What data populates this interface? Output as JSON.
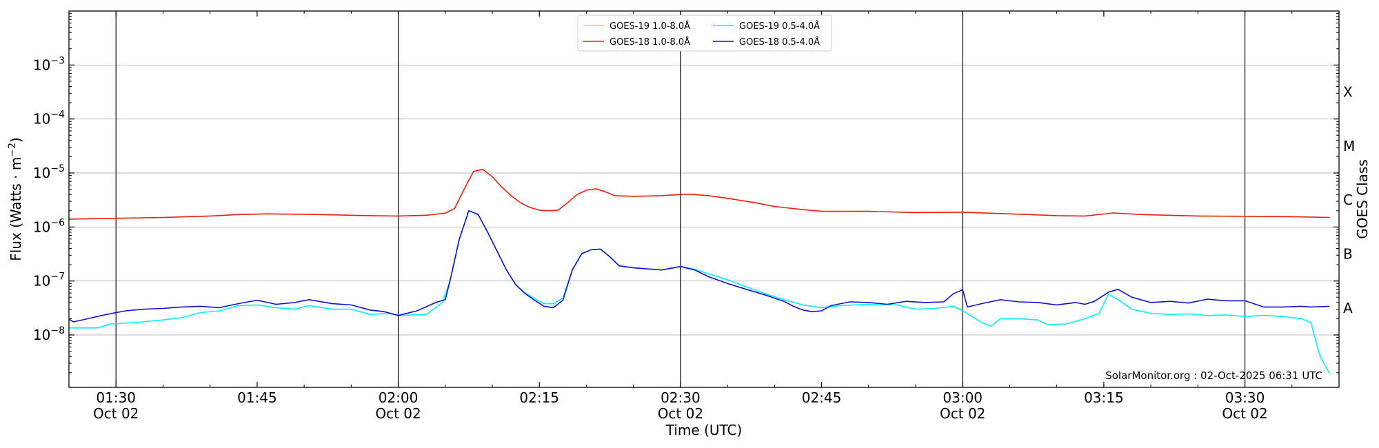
{
  "chart_data": {
    "type": "line",
    "xlabel": "Time (UTC)",
    "ylabel": "Flux (Watts · m",
    "ylabel_sup": "−2",
    "ylabel_close": ")",
    "right_axis_label": "GOES Class",
    "y_scale": "log",
    "xlim": [
      85,
      220
    ],
    "ylim_exp": [
      -8.97,
      -2.0
    ],
    "grid": true,
    "legend_position": "top-center",
    "x_ticks": [
      {
        "minute": 90,
        "time": "01:30",
        "date": "Oct 02",
        "major": true
      },
      {
        "minute": 105,
        "time": "01:45",
        "date": "",
        "major": false
      },
      {
        "minute": 120,
        "time": "02:00",
        "date": "Oct 02",
        "major": true
      },
      {
        "minute": 135,
        "time": "02:15",
        "date": "",
        "major": false
      },
      {
        "minute": 150,
        "time": "02:30",
        "date": "Oct 02",
        "major": true
      },
      {
        "minute": 165,
        "time": "02:45",
        "date": "",
        "major": false
      },
      {
        "minute": 180,
        "time": "03:00",
        "date": "Oct 02",
        "major": true
      },
      {
        "minute": 195,
        "time": "03:15",
        "date": "",
        "major": false
      },
      {
        "minute": 210,
        "time": "03:30",
        "date": "Oct 02",
        "major": true
      }
    ],
    "y_ticks": [
      {
        "exp": -3,
        "base": "10",
        "sup": "−3"
      },
      {
        "exp": -4,
        "base": "10",
        "sup": "−4"
      },
      {
        "exp": -5,
        "base": "10",
        "sup": "−5"
      },
      {
        "exp": -6,
        "base": "10",
        "sup": "−6"
      },
      {
        "exp": -7,
        "base": "10",
        "sup": "−7"
      },
      {
        "exp": -8,
        "base": "10",
        "sup": "−8"
      }
    ],
    "goes_classes": [
      {
        "label": "X",
        "exp": -3.5
      },
      {
        "label": "M",
        "exp": -4.5
      },
      {
        "label": "C",
        "exp": -5.5
      },
      {
        "label": "B",
        "exp": -6.5
      },
      {
        "label": "A",
        "exp": -7.5
      }
    ],
    "annotation": "SolarMonitor.org : 02-Oct-2025 06:31 UTC",
    "series": [
      {
        "name": "GOES-19 1.0-8.0Å",
        "color": "#ffd700",
        "points": []
      },
      {
        "name": "GOES-18 1.0-8.0Å",
        "color": "#e8200a",
        "points": [
          [
            85,
            1.4e-06
          ],
          [
            90,
            1.45e-06
          ],
          [
            95,
            1.5e-06
          ],
          [
            100,
            1.6e-06
          ],
          [
            103,
            1.7e-06
          ],
          [
            106,
            1.75e-06
          ],
          [
            110,
            1.72e-06
          ],
          [
            113,
            1.68e-06
          ],
          [
            117,
            1.62e-06
          ],
          [
            120,
            1.6e-06
          ],
          [
            123,
            1.65e-06
          ],
          [
            125,
            1.8e-06
          ],
          [
            126,
            2.2e-06
          ],
          [
            127,
            5e-06
          ],
          [
            128,
            1.07e-05
          ],
          [
            129,
            1.17e-05
          ],
          [
            130,
            8.5e-06
          ],
          [
            131,
            5.5e-06
          ],
          [
            132,
            3.8e-06
          ],
          [
            133,
            2.8e-06
          ],
          [
            134,
            2.3e-06
          ],
          [
            135,
            2.05e-06
          ],
          [
            136,
            2e-06
          ],
          [
            137,
            2.05e-06
          ],
          [
            138,
            2.8e-06
          ],
          [
            139,
            4e-06
          ],
          [
            140,
            4.8e-06
          ],
          [
            141,
            5.1e-06
          ],
          [
            142,
            4.5e-06
          ],
          [
            143,
            3.8e-06
          ],
          [
            145,
            3.7e-06
          ],
          [
            148,
            3.8e-06
          ],
          [
            150,
            4e-06
          ],
          [
            151,
            4.05e-06
          ],
          [
            153,
            3.8e-06
          ],
          [
            155,
            3.4e-06
          ],
          [
            158,
            2.8e-06
          ],
          [
            160,
            2.4e-06
          ],
          [
            163,
            2.1e-06
          ],
          [
            165,
            1.95e-06
          ],
          [
            170,
            1.95e-06
          ],
          [
            175,
            1.85e-06
          ],
          [
            180,
            1.88e-06
          ],
          [
            185,
            1.75e-06
          ],
          [
            190,
            1.62e-06
          ],
          [
            193,
            1.6e-06
          ],
          [
            196,
            1.82e-06
          ],
          [
            199,
            1.7e-06
          ],
          [
            205,
            1.6e-06
          ],
          [
            210,
            1.58e-06
          ],
          [
            215,
            1.55e-06
          ],
          [
            219,
            1.5e-06
          ]
        ]
      },
      {
        "name": "GOES-19 0.5-4.0Å",
        "color": "#00f2ff",
        "points": [
          [
            85,
            1.35e-08
          ],
          [
            88,
            1.35e-08
          ],
          [
            89.5,
            1.6e-08
          ],
          [
            92,
            1.7e-08
          ],
          [
            95,
            1.9e-08
          ],
          [
            97,
            2.1e-08
          ],
          [
            99,
            2.6e-08
          ],
          [
            101,
            2.8e-08
          ],
          [
            103,
            3.5e-08
          ],
          [
            105,
            3.6e-08
          ],
          [
            107,
            3.2e-08
          ],
          [
            109,
            3e-08
          ],
          [
            110.5,
            3.5e-08
          ],
          [
            113,
            3e-08
          ],
          [
            115,
            3e-08
          ],
          [
            117,
            2.4e-08
          ],
          [
            119,
            2.5e-08
          ],
          [
            120,
            2.3e-08
          ],
          [
            123,
            2.4e-08
          ],
          [
            124.7,
            4e-08
          ],
          [
            125.5,
            1e-07
          ],
          [
            126.5,
            6e-07
          ],
          [
            127.5,
            2e-06
          ],
          [
            128.5,
            1.7e-06
          ],
          [
            129.5,
            8e-07
          ],
          [
            130.5,
            3.6e-07
          ],
          [
            131.5,
            1.6e-07
          ],
          [
            132.5,
            8.5e-08
          ],
          [
            133.5,
            6e-08
          ],
          [
            134.5,
            4.7e-08
          ],
          [
            135.5,
            3.8e-08
          ],
          [
            136.5,
            3.8e-08
          ],
          [
            137.5,
            4.8e-08
          ],
          [
            138.5,
            1.6e-07
          ],
          [
            139.5,
            3.2e-07
          ],
          [
            140.5,
            3.8e-07
          ],
          [
            141.5,
            3.9e-07
          ],
          [
            142.5,
            2.8e-07
          ],
          [
            143.5,
            1.9e-07
          ],
          [
            145,
            1.75e-07
          ],
          [
            148,
            1.6e-07
          ],
          [
            150,
            1.85e-07
          ],
          [
            151.5,
            1.65e-07
          ],
          [
            153,
            1.35e-07
          ],
          [
            155,
            1.05e-07
          ],
          [
            157,
            7.8e-08
          ],
          [
            159,
            5.8e-08
          ],
          [
            161,
            4.5e-08
          ],
          [
            163,
            3.6e-08
          ],
          [
            165,
            3.2e-08
          ],
          [
            167,
            3.5e-08
          ],
          [
            170,
            3.7e-08
          ],
          [
            173,
            3.6e-08
          ],
          [
            175,
            3e-08
          ],
          [
            177,
            3.1e-08
          ],
          [
            179,
            3.4e-08
          ],
          [
            180,
            2.8e-08
          ],
          [
            181,
            2.2e-08
          ],
          [
            182,
            1.7e-08
          ],
          [
            183,
            1.45e-08
          ],
          [
            184,
            2e-08
          ],
          [
            186,
            2e-08
          ],
          [
            188,
            1.9e-08
          ],
          [
            189,
            1.55e-08
          ],
          [
            191,
            1.6e-08
          ],
          [
            193,
            2e-08
          ],
          [
            194.5,
            2.5e-08
          ],
          [
            195.5,
            5.7e-08
          ],
          [
            196.5,
            4.5e-08
          ],
          [
            198,
            3e-08
          ],
          [
            200,
            2.5e-08
          ],
          [
            202,
            2.4e-08
          ],
          [
            204,
            2.45e-08
          ],
          [
            206,
            2.3e-08
          ],
          [
            208,
            2.35e-08
          ],
          [
            210,
            2.2e-08
          ],
          [
            212,
            2.3e-08
          ],
          [
            214,
            2.2e-08
          ],
          [
            216,
            2e-08
          ],
          [
            217,
            1.7e-08
          ],
          [
            218,
            4e-09
          ],
          [
            219,
            1.9e-09
          ]
        ]
      },
      {
        "name": "GOES-18 0.5-4.0Å",
        "color": "#1010d0",
        "points": [
          [
            85,
            1.95e-08
          ],
          [
            85.5,
            1.75e-08
          ],
          [
            87,
            2e-08
          ],
          [
            89,
            2.4e-08
          ],
          [
            91,
            2.8e-08
          ],
          [
            93,
            3e-08
          ],
          [
            95,
            3.1e-08
          ],
          [
            97,
            3.3e-08
          ],
          [
            99,
            3.4e-08
          ],
          [
            101,
            3.2e-08
          ],
          [
            102,
            3.5e-08
          ],
          [
            103,
            3.8e-08
          ],
          [
            105,
            4.4e-08
          ],
          [
            107,
            3.7e-08
          ],
          [
            109,
            4e-08
          ],
          [
            110.5,
            4.5e-08
          ],
          [
            113,
            3.8e-08
          ],
          [
            115,
            3.6e-08
          ],
          [
            117,
            2.9e-08
          ],
          [
            118.5,
            2.7e-08
          ],
          [
            120,
            2.3e-08
          ],
          [
            122,
            2.8e-08
          ],
          [
            124,
            4e-08
          ],
          [
            125,
            4.5e-08
          ],
          [
            125.5,
            1e-07
          ],
          [
            126.5,
            6e-07
          ],
          [
            127.5,
            2e-06
          ],
          [
            128.5,
            1.7e-06
          ],
          [
            129.5,
            8e-07
          ],
          [
            130.5,
            3.6e-07
          ],
          [
            131.5,
            1.6e-07
          ],
          [
            132.5,
            8.5e-08
          ],
          [
            133.5,
            5.8e-08
          ],
          [
            134.5,
            4.4e-08
          ],
          [
            135.5,
            3.4e-08
          ],
          [
            136.5,
            3.2e-08
          ],
          [
            137.5,
            4.4e-08
          ],
          [
            138.5,
            1.6e-07
          ],
          [
            139.5,
            3.2e-07
          ],
          [
            140.5,
            3.8e-07
          ],
          [
            141.5,
            3.9e-07
          ],
          [
            142.5,
            2.8e-07
          ],
          [
            143.5,
            1.9e-07
          ],
          [
            145,
            1.75e-07
          ],
          [
            148,
            1.6e-07
          ],
          [
            150,
            1.85e-07
          ],
          [
            151.5,
            1.6e-07
          ],
          [
            153,
            1.2e-07
          ],
          [
            155,
            9e-08
          ],
          [
            157,
            7e-08
          ],
          [
            159,
            5.5e-08
          ],
          [
            161,
            4.2e-08
          ],
          [
            162,
            3.4e-08
          ],
          [
            163,
            2.9e-08
          ],
          [
            164,
            2.7e-08
          ],
          [
            165,
            2.8e-08
          ],
          [
            166,
            3.5e-08
          ],
          [
            168,
            4.1e-08
          ],
          [
            170,
            4e-08
          ],
          [
            172,
            3.7e-08
          ],
          [
            174,
            4.2e-08
          ],
          [
            176,
            4e-08
          ],
          [
            178,
            4.1e-08
          ],
          [
            179,
            5.8e-08
          ],
          [
            180,
            6.9e-08
          ],
          [
            180.5,
            3.3e-08
          ],
          [
            182,
            3.8e-08
          ],
          [
            184,
            4.5e-08
          ],
          [
            186,
            4.1e-08
          ],
          [
            188,
            4e-08
          ],
          [
            190,
            3.6e-08
          ],
          [
            192,
            4e-08
          ],
          [
            193,
            3.7e-08
          ],
          [
            194,
            4.2e-08
          ],
          [
            195.5,
            6.2e-08
          ],
          [
            196.5,
            7e-08
          ],
          [
            198,
            5e-08
          ],
          [
            200,
            4e-08
          ],
          [
            202,
            4.2e-08
          ],
          [
            204,
            3.9e-08
          ],
          [
            206,
            4.6e-08
          ],
          [
            208,
            4.3e-08
          ],
          [
            210,
            4.3e-08
          ],
          [
            212,
            3.3e-08
          ],
          [
            214,
            3.3e-08
          ],
          [
            216,
            3.4e-08
          ],
          [
            217,
            3.3e-08
          ],
          [
            219,
            3.4e-08
          ]
        ]
      }
    ]
  }
}
